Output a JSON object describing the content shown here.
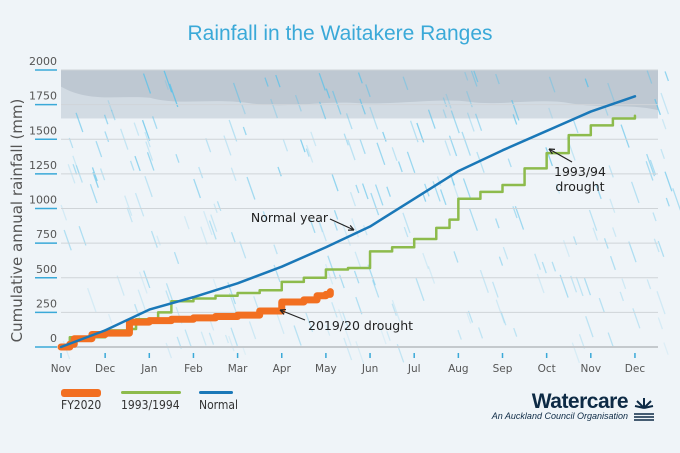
{
  "chart_data": {
    "type": "line",
    "title": "Rainfall in the Waitakere Ranges",
    "ylabel": "Cumulative annual rainfall (mm)",
    "xlabel": "",
    "ylim": [
      0,
      2000
    ],
    "y_ticks": [
      0,
      250,
      500,
      750,
      1000,
      1250,
      1500,
      1750,
      2000
    ],
    "x_ticks": [
      "Nov",
      "Dec",
      "Jan",
      "Feb",
      "Mar",
      "Apr",
      "May",
      "Jun",
      "Jul",
      "Aug",
      "Sep",
      "Oct",
      "Nov",
      "Dec"
    ],
    "grid": true,
    "legend_position": "bottom-left",
    "series": [
      {
        "name": "FY2020",
        "color": "#f26f21",
        "x": [
          0,
          0.2,
          0.3,
          0.7,
          1,
          1.5,
          1.55,
          2,
          2.5,
          3,
          3.5,
          4,
          4.5,
          5,
          5.5,
          5.8,
          6,
          6.1
        ],
        "y": [
          0,
          20,
          60,
          90,
          100,
          100,
          180,
          190,
          200,
          210,
          220,
          230,
          260,
          325,
          340,
          370,
          380,
          400
        ]
      },
      {
        "name": "1993/1994",
        "color": "#8dbb4c",
        "x": [
          0,
          0.2,
          1,
          1.6,
          1.7,
          2.2,
          2.5,
          3,
          3.5,
          4,
          4.5,
          5,
          5.5,
          6,
          6.5,
          7,
          7.5,
          8,
          8.5,
          8.8,
          9,
          9.5,
          10,
          10.5,
          11,
          11.5,
          12,
          12.5,
          13
        ],
        "y": [
          0,
          70,
          120,
          130,
          200,
          250,
          330,
          350,
          370,
          390,
          410,
          470,
          500,
          560,
          570,
          690,
          720,
          780,
          860,
          920,
          1070,
          1120,
          1170,
          1290,
          1400,
          1530,
          1600,
          1650,
          1670
        ]
      },
      {
        "name": "Normal",
        "color": "#1a78b8",
        "x": [
          0,
          1,
          2,
          3,
          4,
          5,
          6,
          7,
          8,
          9,
          10,
          11,
          12,
          13
        ],
        "y": [
          0,
          120,
          270,
          360,
          460,
          580,
          720,
          870,
          1070,
          1270,
          1420,
          1560,
          1700,
          1810
        ]
      }
    ],
    "annotations": [
      {
        "text": "Normal year",
        "series": "Normal"
      },
      {
        "text": "2019/20 drought",
        "series": "FY2020"
      },
      {
        "text": "1993/94",
        "text2": "drought",
        "series": "1993/1994"
      }
    ]
  },
  "branding": {
    "name": "Watercare",
    "tagline": "An Auckland Council Organisation"
  }
}
